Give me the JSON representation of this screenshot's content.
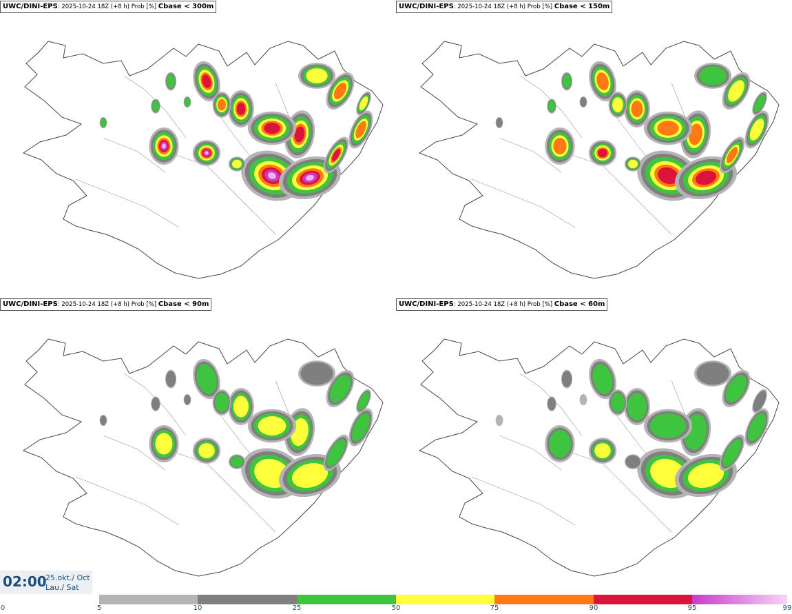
{
  "panels": [
    {
      "model": "UWC/DINI-EPS",
      "meta": "2025-10-24 18Z (+8 h) Prob [%]",
      "var": "Cbase < 300m"
    },
    {
      "model": "UWC/DINI-EPS",
      "meta": "2025-10-24 18Z (+8 h) Prob [%]",
      "var": "Cbase < 150m"
    },
    {
      "model": "UWC/DINI-EPS",
      "meta": "2025-10-24 18Z (+8 h) Prob [%]",
      "var": "Cbase < 90m"
    },
    {
      "model": "UWC/DINI-EPS",
      "meta": "2025-10-24 18Z (+8 h) Prob [%]",
      "var": "Cbase < 60m"
    }
  ],
  "time": {
    "clock": "02:00",
    "date_line1": "25.okt./ Oct",
    "date_line2": "Lau./ Sat"
  },
  "colorbar": {
    "ticks": [
      "0",
      "5",
      "10",
      "25",
      "50",
      "75",
      "90",
      "95",
      "99"
    ],
    "segments": [
      {
        "from": 5,
        "to": 10,
        "color": "#b4b4b4"
      },
      {
        "from": 10,
        "to": 25,
        "color": "#7f7f7f"
      },
      {
        "from": 25,
        "to": 50,
        "color": "#3ec43e"
      },
      {
        "from": 50,
        "to": 75,
        "color": "#ffff3c"
      },
      {
        "from": 75,
        "to": 90,
        "color": "#ff7a14"
      },
      {
        "from": 90,
        "to": 95,
        "color": "#dc143c"
      },
      {
        "from": 95,
        "to": 99,
        "color": "#c83cc8"
      }
    ]
  },
  "colors": {
    "coast": "#444444",
    "roads": "#888888",
    "text": "#1b4f7a"
  }
}
